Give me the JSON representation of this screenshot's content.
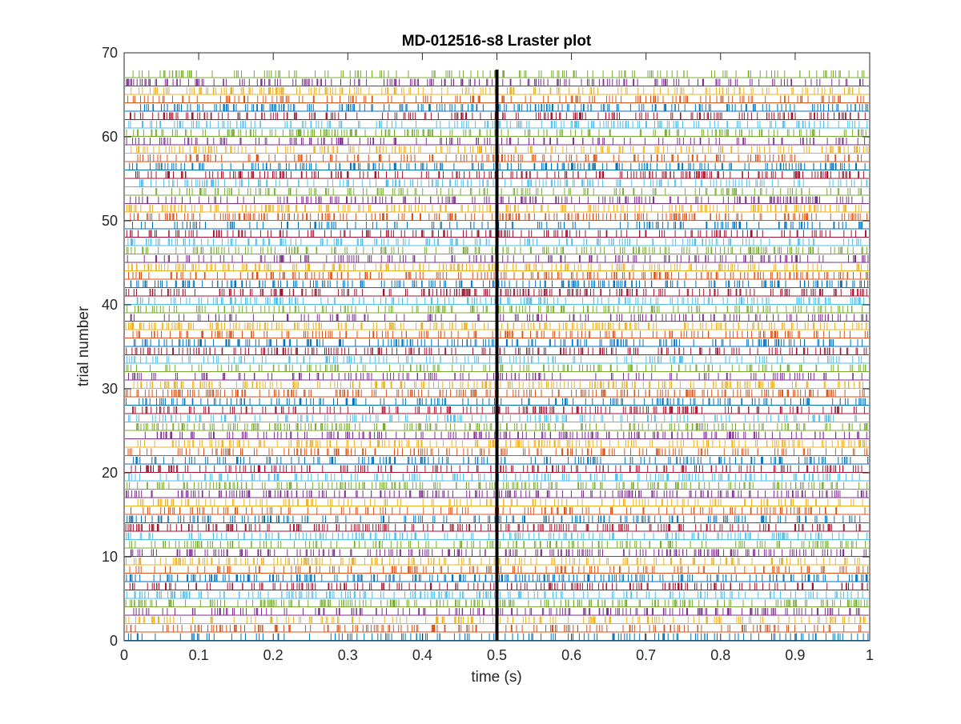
{
  "chart_data": {
    "type": "raster",
    "title": "MD-012516-s8 Lraster plot",
    "xlabel": "time (s)",
    "ylabel": "trial number",
    "xlim": [
      0,
      1
    ],
    "ylim": [
      0,
      70
    ],
    "x_ticks": [
      0,
      0.1,
      0.2,
      0.3,
      0.4,
      0.5,
      0.6,
      0.7,
      0.8,
      0.9,
      1
    ],
    "x_tick_labels": [
      "0",
      "0.1",
      "0.2",
      "0.3",
      "0.4",
      "0.5",
      "0.6",
      "0.7",
      "0.8",
      "0.9",
      "1"
    ],
    "y_ticks": [
      0,
      10,
      20,
      30,
      40,
      50,
      60,
      70
    ],
    "y_tick_labels": [
      "0",
      "10",
      "20",
      "30",
      "40",
      "50",
      "60",
      "70"
    ],
    "trial_count": 68,
    "event_marker": {
      "x": 0.5,
      "color": "#000000"
    },
    "trial_colors": [
      "#0072bd",
      "#d95319",
      "#edb120",
      "#7e2f8e",
      "#77ac30",
      "#4dbeee",
      "#a2142f"
    ],
    "grid": false,
    "legend": "none"
  }
}
